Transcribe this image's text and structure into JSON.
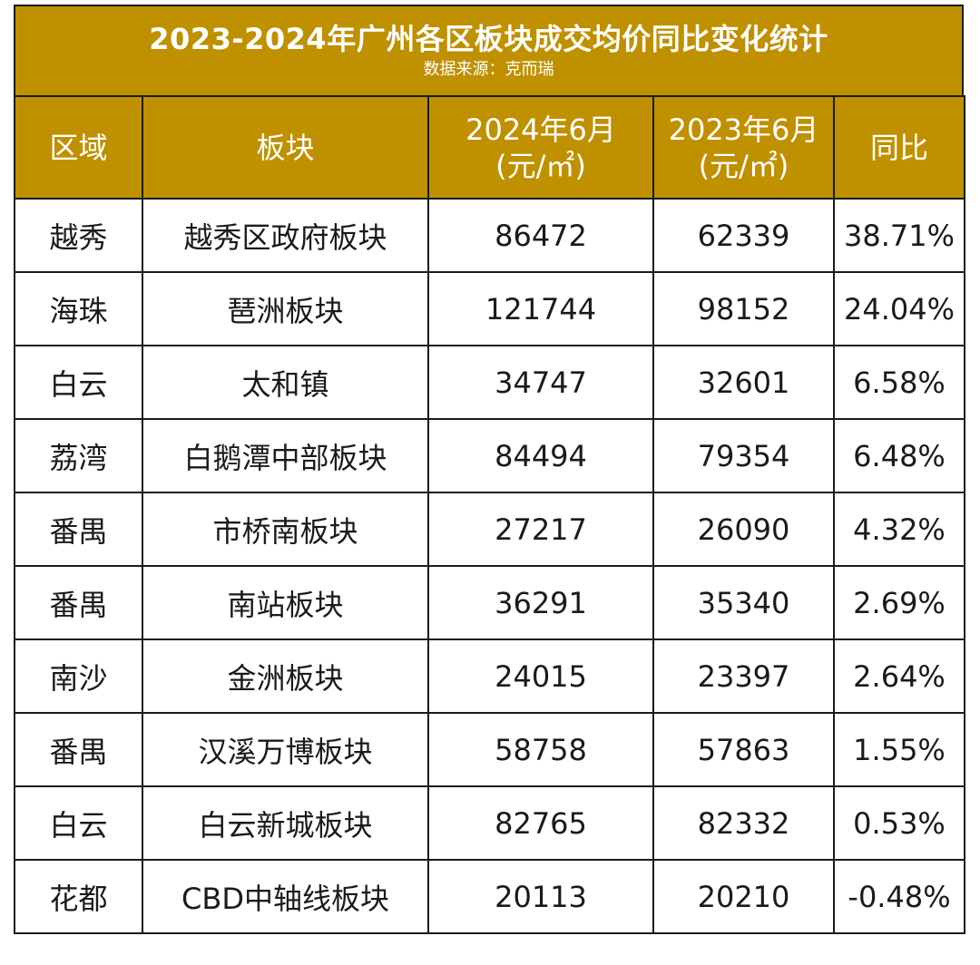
{
  "title": "2023-2024年广州各区板块成交均价同比变化统计",
  "subtitle": "数据来源：克而瑞",
  "colors": {
    "header_bg": "#bf9000",
    "header_text": "#ffffff",
    "border": "#1a1a1a"
  },
  "chart_data": {
    "type": "table",
    "title": "2023-2024年广州各区板块成交均价同比变化统计",
    "subtitle": "数据来源：克而瑞",
    "columns": [
      "区域",
      "板块",
      "2024年6月 (元/㎡)",
      "2023年6月 (元/㎡)",
      "同比"
    ],
    "rows": [
      [
        "越秀",
        "越秀区政府板块",
        "86472",
        "62339",
        "38.71%"
      ],
      [
        "海珠",
        "琶洲板块",
        "121744",
        "98152",
        "24.04%"
      ],
      [
        "白云",
        "太和镇",
        "34747",
        "32601",
        "6.58%"
      ],
      [
        "荔湾",
        "白鹅潭中部板块",
        "84494",
        "79354",
        "6.48%"
      ],
      [
        "番禺",
        "市桥南板块",
        "27217",
        "26090",
        "4.32%"
      ],
      [
        "番禺",
        "南站板块",
        "36291",
        "35340",
        "2.69%"
      ],
      [
        "南沙",
        "金洲板块",
        "24015",
        "23397",
        "2.64%"
      ],
      [
        "番禺",
        "汉溪万博板块",
        "58758",
        "57863",
        "1.55%"
      ],
      [
        "白云",
        "白云新城板块",
        "82765",
        "82332",
        "0.53%"
      ],
      [
        "花都",
        "CBD中轴线板块",
        "20113",
        "20210",
        "-0.48%"
      ]
    ]
  }
}
